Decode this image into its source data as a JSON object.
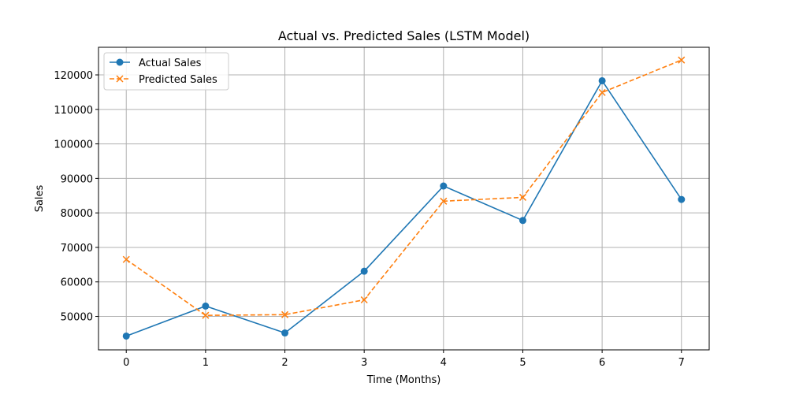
{
  "chart_data": {
    "type": "line",
    "title": "Actual vs. Predicted Sales (LSTM Model)",
    "xlabel": "Time (Months)",
    "ylabel": "Sales",
    "x": [
      0,
      1,
      2,
      3,
      4,
      5,
      6,
      7
    ],
    "xlim": [
      -0.35,
      7.35
    ],
    "ylim": [
      40300,
      128000
    ],
    "xticks": [
      0,
      1,
      2,
      3,
      4,
      5,
      6,
      7
    ],
    "yticks": [
      50000,
      60000,
      70000,
      80000,
      90000,
      100000,
      110000,
      120000
    ],
    "grid": true,
    "legend_position": "top-left",
    "series": [
      {
        "name": "Actual Sales",
        "values": [
          44300,
          53000,
          45200,
          63100,
          87800,
          77800,
          118300,
          83900
        ],
        "color": "#1f77b4",
        "marker": "circle",
        "line_style": "solid"
      },
      {
        "name": "Predicted Sales",
        "values": [
          66500,
          50300,
          50500,
          54800,
          83400,
          84500,
          114900,
          124300
        ],
        "color": "#ff7f0e",
        "marker": "x",
        "line_style": "dashed"
      }
    ]
  }
}
